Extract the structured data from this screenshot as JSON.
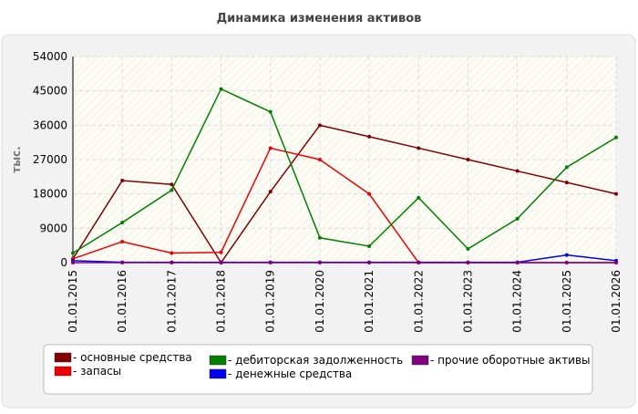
{
  "chart_data": {
    "type": "line",
    "title": "Динамика изменения активов",
    "y_label": "тыс.",
    "categories": [
      "01.01.2015",
      "01.01.2016",
      "01.01.2017",
      "01.01.2018",
      "01.01.2019",
      "01.01.2020",
      "01.01.2021",
      "01.01.2022",
      "01.01.2023",
      "01.01.2024",
      "01.01.2025",
      "01.01.2026"
    ],
    "series": [
      {
        "name": "- основные средства",
        "color": "#800000",
        "values": [
          1000,
          21500,
          20500,
          0,
          18600,
          36000,
          33000,
          30000,
          27000,
          24000,
          21000,
          18000
        ]
      },
      {
        "name": "- запасы",
        "color": "#ee0000",
        "values": [
          1000,
          5500,
          2500,
          2700,
          30000,
          27000,
          18000,
          0,
          0,
          0,
          0,
          0
        ]
      },
      {
        "name": "- дебиторская задолженность",
        "color": "#008000",
        "values": [
          2500,
          10500,
          19000,
          45500,
          39500,
          6500,
          4300,
          17000,
          3600,
          11500,
          25000,
          32800
        ]
      },
      {
        "name": "- денежные средства",
        "color": "#0000ee",
        "values": [
          500,
          100,
          100,
          100,
          100,
          100,
          100,
          100,
          100,
          100,
          2000,
          500
        ]
      },
      {
        "name": "- прочие оборотные активы",
        "color": "#800080",
        "values": [
          0,
          0,
          0,
          0,
          0,
          0,
          0,
          0,
          0,
          0,
          0,
          0
        ]
      }
    ],
    "ylim": [
      0,
      54000
    ],
    "yticks": [
      0,
      9000,
      18000,
      27000,
      36000,
      45000,
      54000
    ],
    "grid": true,
    "legend": "bottom"
  }
}
